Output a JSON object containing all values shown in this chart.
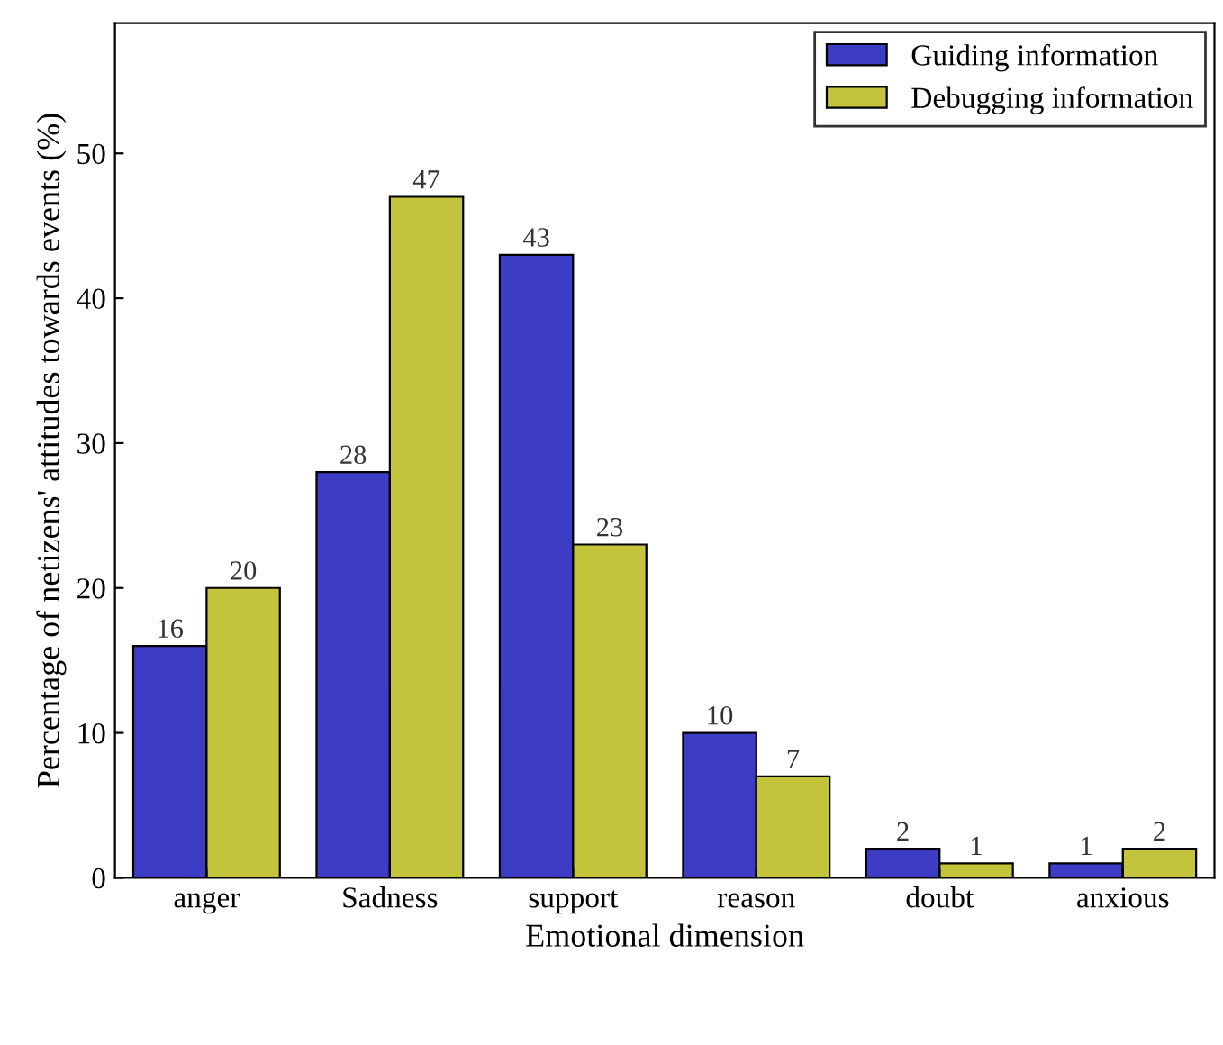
{
  "chart_data": {
    "type": "bar",
    "xlabel": "Emotional dimension",
    "ylabel": "Percentage of netizens' attitudes towards events (%)",
    "categories": [
      "anger",
      "Sadness",
      "support",
      "reason",
      "doubt",
      "anxious"
    ],
    "series": [
      {
        "name": "Guiding information",
        "color": "#3c3cc4",
        "values": [
          16,
          28,
          43,
          10,
          2,
          1
        ]
      },
      {
        "name": "Debugging information",
        "color": "#c4c43c",
        "values": [
          20,
          47,
          23,
          7,
          1,
          2
        ]
      }
    ],
    "ylim": [
      0,
      59
    ],
    "yticks": [
      0,
      10,
      20,
      30,
      40,
      50
    ],
    "data_labels": true,
    "legend": "top right",
    "grid": false
  }
}
